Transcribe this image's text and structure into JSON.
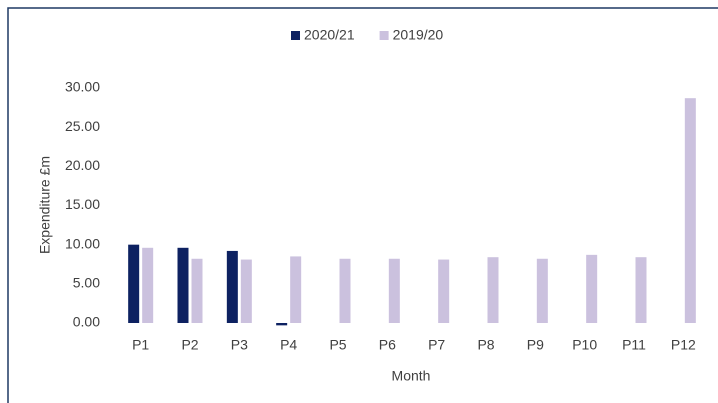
{
  "chart_data": {
    "type": "bar",
    "categories": [
      "P1",
      "P2",
      "P3",
      "P4",
      "P5",
      "P6",
      "P7",
      "P8",
      "P9",
      "P10",
      "P11",
      "P12"
    ],
    "series": [
      {
        "name": "2020/21",
        "color": "#0d2161",
        "values": [
          10.0,
          9.6,
          9.2,
          -0.3,
          null,
          null,
          null,
          null,
          null,
          null,
          null,
          null
        ]
      },
      {
        "name": "2019/20",
        "color": "#cbc1de",
        "values": [
          9.6,
          8.2,
          8.1,
          8.5,
          8.2,
          8.2,
          8.1,
          8.4,
          8.2,
          8.7,
          8.4,
          28.7
        ]
      }
    ],
    "ylim": [
      0,
      30
    ],
    "yticks": [
      {
        "value": 0,
        "label": "0.00"
      },
      {
        "value": 5,
        "label": "5.00"
      },
      {
        "value": 10,
        "label": "10.00"
      },
      {
        "value": 15,
        "label": "15.00"
      },
      {
        "value": 20,
        "label": "20.00"
      },
      {
        "value": 25,
        "label": "25.00"
      },
      {
        "value": 30,
        "label": "30.00"
      }
    ],
    "y_label": "Expenditure  £m",
    "x_label": "Month",
    "grid": false,
    "legend": "top"
  }
}
